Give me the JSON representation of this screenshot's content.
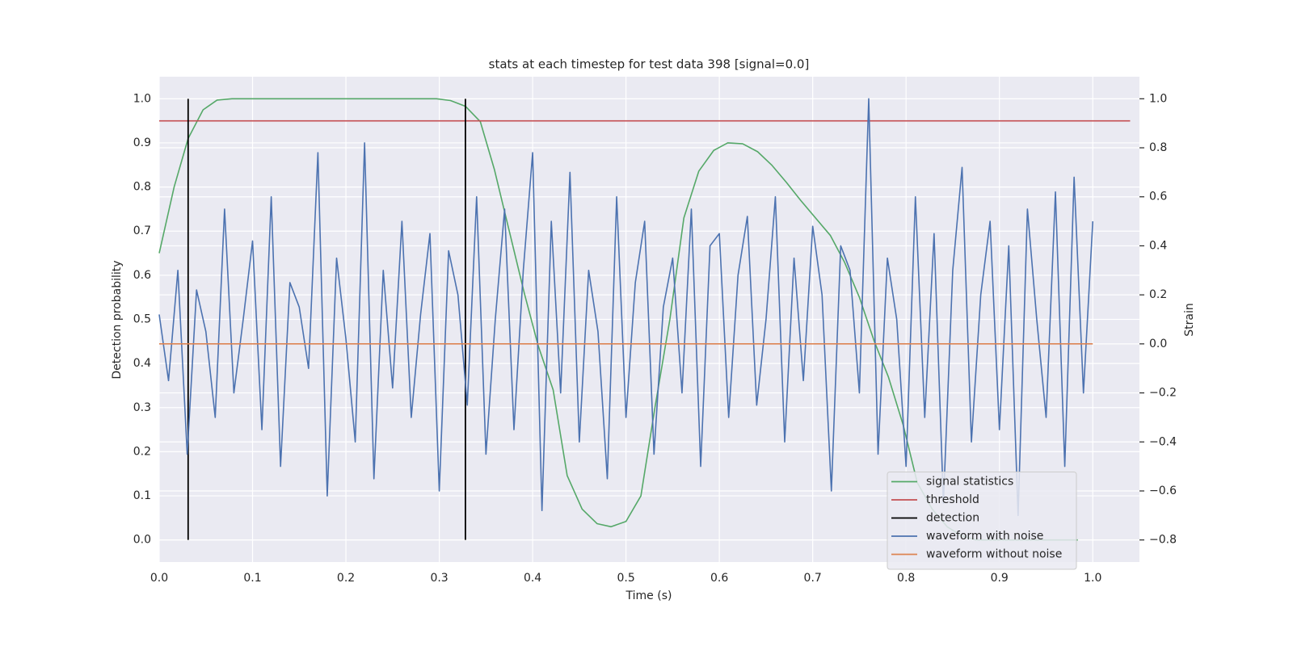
{
  "chart_data": {
    "type": "line",
    "title": "stats at each timestep for test data 398 [signal=0.0]",
    "xlabel": "Time (s)",
    "ylabel": "Detection probability",
    "y2label": "Strain",
    "xlim": [
      0,
      1.05
    ],
    "ylim": [
      -0.05,
      1.05
    ],
    "y2lim": [
      -0.89,
      1.09
    ],
    "xticks": [
      {
        "value": 0,
        "label": "0.0"
      },
      0.1,
      0.2,
      0.3,
      0.4,
      0.5,
      0.6,
      0.7,
      0.8,
      0.9,
      {
        "value": 1,
        "label": "1.0"
      }
    ],
    "yticks": [
      {
        "value": 0,
        "label": "0.0"
      },
      0.1,
      0.2,
      0.3,
      0.4,
      0.5,
      0.6,
      0.7,
      0.8,
      0.9,
      {
        "value": 1,
        "label": "1.0"
      }
    ],
    "y2ticks": [
      {
        "value": -0.8,
        "label": "−0.8"
      },
      {
        "value": -0.6,
        "label": "−0.6"
      },
      {
        "value": -0.4,
        "label": "−0.4"
      },
      {
        "value": -0.2,
        "label": "−0.2"
      },
      {
        "value": 0,
        "label": "0.0"
      },
      0.2,
      0.4,
      0.6,
      0.8,
      {
        "value": 1,
        "label": "1.0"
      }
    ],
    "grid": true,
    "legend": "lower right",
    "series": [
      {
        "name": "signal statistics",
        "color": "#55a868",
        "x": [
          0,
          0.016,
          0.031,
          0.047,
          0.062,
          0.078,
          0.1,
          0.15,
          0.2,
          0.25,
          0.297,
          0.312,
          0.328,
          0.344,
          0.359,
          0.375,
          0.391,
          0.406,
          0.422,
          0.437,
          0.453,
          0.469,
          0.484,
          0.5,
          0.516,
          0.531,
          0.547,
          0.562,
          0.578,
          0.594,
          0.609,
          0.625,
          0.641,
          0.656,
          0.672,
          0.687,
          0.703,
          0.719,
          0.734,
          0.75,
          0.766,
          0.781,
          0.797,
          0.812,
          0.828,
          0.844,
          0.859,
          0.875,
          0.9,
          0.95,
          0.984
        ],
        "values": [
          0.65,
          0.8,
          0.91,
          0.975,
          0.997,
          1.0,
          1.0,
          1.0,
          1.0,
          1.0,
          1.0,
          0.996,
          0.983,
          0.948,
          0.84,
          0.7,
          0.56,
          0.44,
          0.34,
          0.146,
          0.07,
          0.037,
          0.03,
          0.042,
          0.1,
          0.3,
          0.5,
          0.73,
          0.836,
          0.883,
          0.9,
          0.898,
          0.88,
          0.85,
          0.81,
          0.77,
          0.73,
          0.69,
          0.63,
          0.55,
          0.45,
          0.37,
          0.26,
          0.13,
          0.07,
          0.03,
          0.01,
          0.0,
          0.0,
          0.0,
          0.0
        ]
      },
      {
        "name": "threshold",
        "color": "#c44e52",
        "x": [
          0,
          1.04
        ],
        "values": [
          0.95,
          0.95
        ]
      },
      {
        "name": "detection",
        "color": "#000000",
        "kind": "vlines",
        "x": [
          0.031,
          0.328
        ],
        "ymin": 0,
        "ymax": 1
      },
      {
        "name": "waveform with noise",
        "color": "#4c72b0",
        "axis": "y2",
        "x": [
          0,
          0.01,
          0.02,
          0.03,
          0.04,
          0.05,
          0.06,
          0.07,
          0.08,
          0.09,
          0.1,
          0.11,
          0.12,
          0.13,
          0.14,
          0.15,
          0.16,
          0.17,
          0.18,
          0.19,
          0.2,
          0.21,
          0.22,
          0.23,
          0.24,
          0.25,
          0.26,
          0.27,
          0.28,
          0.29,
          0.3,
          0.31,
          0.32,
          0.33,
          0.34,
          0.35,
          0.36,
          0.37,
          0.38,
          0.39,
          0.4,
          0.41,
          0.42,
          0.43,
          0.44,
          0.45,
          0.46,
          0.47,
          0.48,
          0.49,
          0.5,
          0.51,
          0.52,
          0.53,
          0.54,
          0.55,
          0.56,
          0.57,
          0.58,
          0.59,
          0.6,
          0.61,
          0.62,
          0.63,
          0.64,
          0.65,
          0.66,
          0.67,
          0.68,
          0.69,
          0.7,
          0.71,
          0.72,
          0.73,
          0.74,
          0.75,
          0.76,
          0.77,
          0.78,
          0.79,
          0.8,
          0.81,
          0.82,
          0.83,
          0.84,
          0.85,
          0.86,
          0.87,
          0.88,
          0.89,
          0.9,
          0.91,
          0.92,
          0.93,
          0.94,
          0.95,
          0.96,
          0.97,
          0.98,
          0.99,
          1.0
        ],
        "values": [
          0.12,
          -0.15,
          0.3,
          -0.45,
          0.22,
          0.05,
          -0.3,
          0.55,
          -0.2,
          0.1,
          0.42,
          -0.35,
          0.6,
          -0.5,
          0.25,
          0.15,
          -0.1,
          0.78,
          -0.62,
          0.35,
          0.02,
          -0.4,
          0.82,
          -0.55,
          0.3,
          -0.18,
          0.5,
          -0.3,
          0.12,
          0.45,
          -0.6,
          0.38,
          0.2,
          -0.25,
          0.6,
          -0.45,
          0.1,
          0.55,
          -0.35,
          0.3,
          0.78,
          -0.68,
          0.5,
          -0.2,
          0.7,
          -0.4,
          0.3,
          0.05,
          -0.55,
          0.6,
          -0.3,
          0.25,
          0.5,
          -0.45,
          0.15,
          0.35,
          -0.2,
          0.55,
          -0.5,
          0.4,
          0.45,
          -0.3,
          0.28,
          0.52,
          -0.25,
          0.1,
          0.6,
          -0.4,
          0.35,
          -0.15,
          0.48,
          0.2,
          -0.6,
          0.4,
          0.3,
          -0.2,
          1.0,
          -0.45,
          0.35,
          0.1,
          -0.5,
          0.6,
          -0.3,
          0.45,
          -0.65,
          0.3,
          0.72,
          -0.4,
          0.2,
          0.5,
          -0.35,
          0.4,
          -0.7,
          0.55,
          0.1,
          -0.3,
          0.62,
          -0.5,
          0.68,
          -0.2,
          0.5
        ]
      },
      {
        "name": "waveform without noise",
        "color": "#dd8452",
        "axis": "y2",
        "x": [
          0,
          1
        ],
        "values": [
          0,
          0
        ]
      }
    ]
  }
}
